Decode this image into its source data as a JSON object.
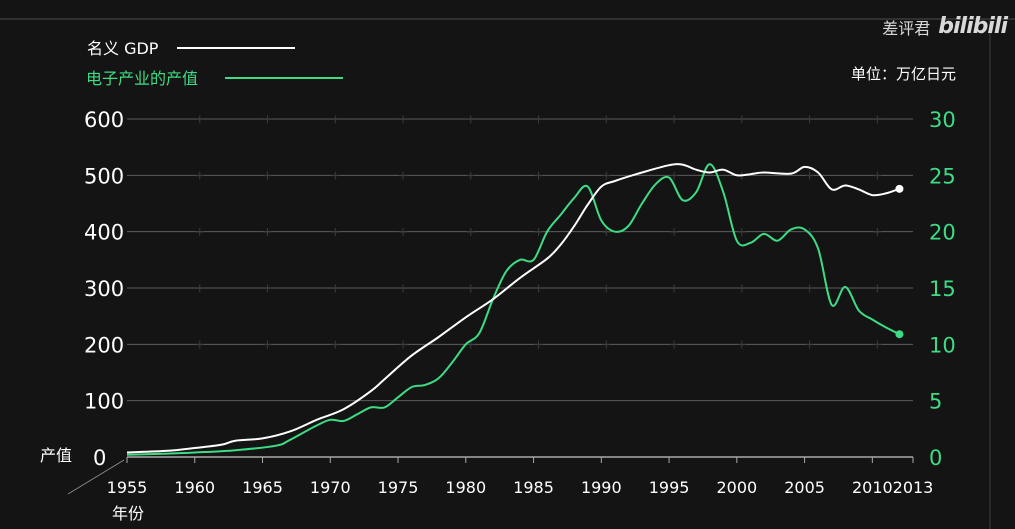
{
  "watermark": {
    "channel": "差评君",
    "site": "bilibili"
  },
  "chart_data": {
    "type": "line",
    "unit_label": "单位：万亿日元",
    "y_axis_title": "产值",
    "xlabel": "年份",
    "x_ticks": [
      "1955",
      "1960",
      "1965",
      "1970",
      "1975",
      "1980",
      "1985",
      "1990",
      "1995",
      "2000",
      "2005",
      "2010",
      "2013"
    ],
    "xlim": [
      1955,
      2013
    ],
    "left_axis": {
      "ticks": [
        "0",
        "100",
        "200",
        "300",
        "400",
        "500",
        "600"
      ],
      "range": [
        0,
        600
      ],
      "color": "#ffffff"
    },
    "right_axis": {
      "ticks": [
        "0",
        "5",
        "10",
        "15",
        "20",
        "25",
        "30"
      ],
      "range": [
        0,
        30
      ],
      "color": "#3ddc84"
    },
    "grid": true,
    "legend_position": "top-left",
    "series": [
      {
        "name": "名义 GDP",
        "axis": "left",
        "color": "#ffffff",
        "points": [
          [
            1955,
            8
          ],
          [
            1958,
            11
          ],
          [
            1960,
            16
          ],
          [
            1962,
            22
          ],
          [
            1963,
            29
          ],
          [
            1965,
            33
          ],
          [
            1967,
            45
          ],
          [
            1969,
            66
          ],
          [
            1971,
            85
          ],
          [
            1973,
            117
          ],
          [
            1974,
            138
          ],
          [
            1976,
            180
          ],
          [
            1978,
            213
          ],
          [
            1980,
            248
          ],
          [
            1982,
            280
          ],
          [
            1984,
            318
          ],
          [
            1986,
            352
          ],
          [
            1987,
            377
          ],
          [
            1988,
            410
          ],
          [
            1989,
            448
          ],
          [
            1990,
            480
          ],
          [
            1991,
            490
          ],
          [
            1993,
            505
          ],
          [
            1995,
            518
          ],
          [
            1996,
            519
          ],
          [
            1997,
            510
          ],
          [
            1998,
            505
          ],
          [
            1999,
            510
          ],
          [
            2000,
            500
          ],
          [
            2001,
            502
          ],
          [
            2002,
            505
          ],
          [
            2004,
            503
          ],
          [
            2005,
            515
          ],
          [
            2006,
            505
          ],
          [
            2007,
            475
          ],
          [
            2008,
            482
          ],
          [
            2009,
            475
          ],
          [
            2010,
            465
          ],
          [
            2011,
            468
          ],
          [
            2012,
            476
          ]
        ]
      },
      {
        "name": "电子产业的产值",
        "axis": "right",
        "color": "#3ddc84",
        "points": [
          [
            1955,
            0.2
          ],
          [
            1958,
            0.3
          ],
          [
            1960,
            0.4
          ],
          [
            1963,
            0.6
          ],
          [
            1966,
            1.0
          ],
          [
            1967,
            1.5
          ],
          [
            1969,
            2.8
          ],
          [
            1970,
            3.3
          ],
          [
            1971,
            3.2
          ],
          [
            1972,
            3.8
          ],
          [
            1973,
            4.4
          ],
          [
            1974,
            4.4
          ],
          [
            1975,
            5.3
          ],
          [
            1976,
            6.2
          ],
          [
            1977,
            6.4
          ],
          [
            1978,
            7.0
          ],
          [
            1979,
            8.4
          ],
          [
            1980,
            10.0
          ],
          [
            1981,
            11.0
          ],
          [
            1982,
            14.0
          ],
          [
            1983,
            16.5
          ],
          [
            1984,
            17.5
          ],
          [
            1985,
            17.5
          ],
          [
            1986,
            20.0
          ],
          [
            1987,
            21.5
          ],
          [
            1988,
            23.0
          ],
          [
            1989,
            24.0
          ],
          [
            1990,
            21.0
          ],
          [
            1991,
            20.0
          ],
          [
            1992,
            20.5
          ],
          [
            1993,
            22.5
          ],
          [
            1994,
            24.2
          ],
          [
            1995,
            24.8
          ],
          [
            1996,
            22.8
          ],
          [
            1997,
            23.5
          ],
          [
            1998,
            26.0
          ],
          [
            1999,
            23.5
          ],
          [
            2000,
            19.2
          ],
          [
            2001,
            19.0
          ],
          [
            2002,
            19.8
          ],
          [
            2003,
            19.2
          ],
          [
            2004,
            20.2
          ],
          [
            2005,
            20.2
          ],
          [
            2006,
            18.5
          ],
          [
            2007,
            13.5
          ],
          [
            2008,
            15.1
          ],
          [
            2009,
            13.0
          ],
          [
            2010,
            12.2
          ],
          [
            2011,
            11.5
          ],
          [
            2012,
            10.9
          ]
        ]
      }
    ]
  }
}
